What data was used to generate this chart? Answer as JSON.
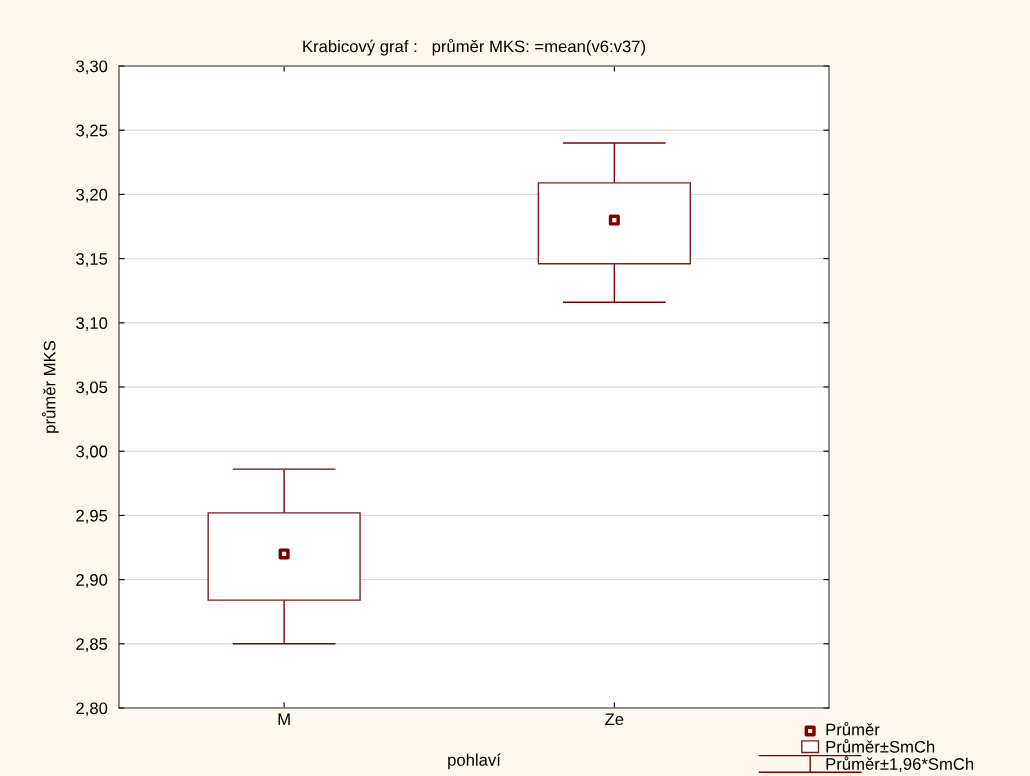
{
  "chart_data": {
    "type": "box",
    "title": "Krabicový graf :   průměr MKS: =mean(v6:v37)",
    "xlabel": "pohlaví",
    "ylabel": "průměr MKS",
    "categories": [
      "M",
      "Ze"
    ],
    "series": [
      {
        "name": "Průměr",
        "type": "scatter",
        "marker": "square",
        "color": "#800000",
        "values": [
          2.92,
          3.18
        ],
        "errors": [
          [
            2.85,
            2.986
          ],
          [
            3.116,
            3.24
          ]
        ]
      },
      {
        "name": "Průměr±SmCh",
        "type": "bar",
        "color": "#7a1f1f",
        "base": [
          2.884,
          3.146
        ],
        "values": [
          0.068,
          0.063
        ]
      }
    ],
    "annotations": [
      "Průměr±1,96*SmCh"
    ],
    "ylim": [
      2.8,
      3.3
    ],
    "yticks": [
      {
        "value": 2.8,
        "label": "2,80"
      },
      {
        "value": 2.85,
        "label": "2,85"
      },
      {
        "value": 2.9,
        "label": "2,90"
      },
      {
        "value": 2.95,
        "label": "2,95"
      },
      {
        "value": 3.0,
        "label": "3,00"
      },
      {
        "value": 3.05,
        "label": "3,05"
      },
      {
        "value": 3.1,
        "label": "3,10"
      },
      {
        "value": 3.15,
        "label": "3,15"
      },
      {
        "value": 3.2,
        "label": "3,20"
      },
      {
        "value": 3.25,
        "label": "3,25"
      },
      {
        "value": 3.3,
        "label": "3,30"
      }
    ],
    "grid": "y",
    "legend": "bottom right"
  }
}
